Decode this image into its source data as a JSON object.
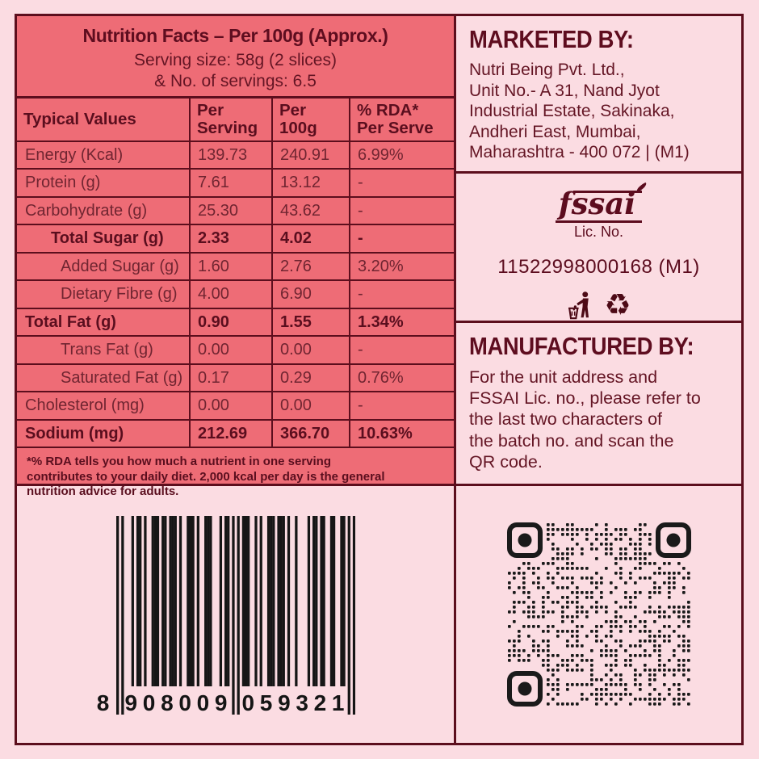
{
  "colors": {
    "background_pink": "#fbdce2",
    "panel_salmon": "#ee6c76",
    "border_maroon": "#5c0e1d",
    "text_dark_maroon": "#5e0d1f",
    "text_body_maroon": "#702531",
    "code_black": "#161616"
  },
  "nutrition_panel": {
    "title": "Nutrition Facts – Per 100g (Approx.)",
    "serving_line1": "Serving size: 58g (2 slices)",
    "serving_line2": "& No. of servings: 6.5",
    "columns": [
      "Typical Values",
      "Per\nServing",
      "Per\n100g",
      "% RDA*\nPer Serve"
    ],
    "rows": [
      {
        "label": "Energy (Kcal)",
        "per_serving": "139.73",
        "per_100g": "240.91",
        "rda": "6.99%",
        "indent": 0,
        "bold": false
      },
      {
        "label": "Protein (g)",
        "per_serving": "7.61",
        "per_100g": "13.12",
        "rda": "-",
        "indent": 0,
        "bold": false
      },
      {
        "label": "Carbohydrate (g)",
        "per_serving": "25.30",
        "per_100g": "43.62",
        "rda": "-",
        "indent": 0,
        "bold": false
      },
      {
        "label": "Total Sugar (g)",
        "per_serving": "2.33",
        "per_100g": "4.02",
        "rda": "-",
        "indent": 1,
        "bold": true
      },
      {
        "label": "Added Sugar (g)",
        "per_serving": "1.60",
        "per_100g": "2.76",
        "rda": "3.20%",
        "indent": 2,
        "bold": false
      },
      {
        "label": "Dietary Fibre (g)",
        "per_serving": "4.00",
        "per_100g": "6.90",
        "rda": "-",
        "indent": 2,
        "bold": false
      },
      {
        "label": "Total Fat (g)",
        "per_serving": "0.90",
        "per_100g": "1.55",
        "rda": "1.34%",
        "indent": 0,
        "bold": true
      },
      {
        "label": "Trans Fat (g)",
        "per_serving": "0.00",
        "per_100g": "0.00",
        "rda": "-",
        "indent": 2,
        "bold": false
      },
      {
        "label": "Saturated Fat (g)",
        "per_serving": "0.17",
        "per_100g": "0.29",
        "rda": "0.76%",
        "indent": 2,
        "bold": false
      },
      {
        "label": "Cholesterol (mg)",
        "per_serving": "0.00",
        "per_100g": "0.00",
        "rda": "-",
        "indent": 0,
        "bold": false
      },
      {
        "label": "Sodium (mg)",
        "per_serving": "212.69",
        "per_100g": "366.70",
        "rda": "10.63%",
        "indent": 0,
        "bold": true
      }
    ],
    "footnote": "*% RDA tells you how much a nutrient in one serving\ncontributes to your daily diet. 2,000 kcal per day is the general\nnutrition advice for adults."
  },
  "marketed_by": {
    "title": "MARKETED BY:",
    "address": "Nutri Being Pvt. Ltd.,\nUnit No.- A 31, Nand Jyot\nIndustrial Estate, Sakinaka,\nAndheri East, Mumbai,\nMaharashtra - 400 072 | (M1)"
  },
  "fssai": {
    "logo_text": "fssai",
    "lic_label": "Lic. No.",
    "lic_no": "11522998000168 (M1)",
    "recycle_glyph": "♻"
  },
  "manufactured_by": {
    "title": "MANUFACTURED BY:",
    "text": "For the unit address and\nFSSAI Lic. no., please refer to\nthe last two characters of\nthe batch no. and scan the\nQR code."
  },
  "barcode": {
    "digits": "8908009059321",
    "display_first": "8",
    "display_left": "908009",
    "display_right": "059321"
  }
}
